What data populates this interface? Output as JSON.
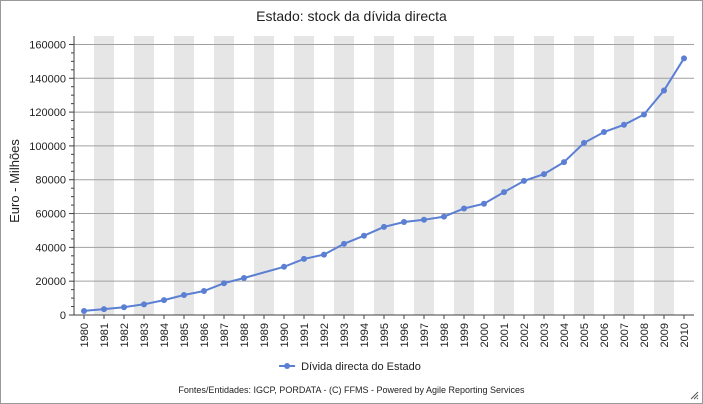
{
  "chart_data": {
    "type": "line",
    "title": "Estado: stock da dívida directa",
    "ylabel": "Euro - Milhões",
    "xlabel": "",
    "ylim": [
      0,
      165000
    ],
    "yticks": [
      0,
      20000,
      40000,
      60000,
      80000,
      100000,
      120000,
      140000,
      160000
    ],
    "categories": [
      "1980",
      "1981",
      "1982",
      "1983",
      "1984",
      "1985",
      "1986",
      "1987",
      "1988",
      "1989",
      "1990",
      "1991",
      "1992",
      "1993",
      "1994",
      "1995",
      "1996",
      "1997",
      "1998",
      "1999",
      "2000",
      "2001",
      "2002",
      "2003",
      "2004",
      "2005",
      "2006",
      "2007",
      "2008",
      "2009",
      "2010"
    ],
    "series": [
      {
        "name": "Dívida directa do Estado",
        "color": "#5b7fd3",
        "values": [
          2400,
          3500,
          4600,
          6300,
          8800,
          11800,
          14200,
          18800,
          21900,
          null,
          28500,
          33200,
          35700,
          42100,
          46900,
          52100,
          55000,
          56300,
          58200,
          63000,
          65800,
          72700,
          79300,
          83300,
          90400,
          101800,
          108200,
          112500,
          118600,
          132800,
          151800
        ]
      }
    ],
    "grid": true,
    "alternating_bands": true,
    "legend_position": "bottom"
  },
  "footer": "Fontes/Entidades: IGCP, PORDATA - (C) FFMS - Powered by Agile Reporting Services",
  "colors": {
    "band": "#e6e6e6",
    "gridline": "#a0a0a0",
    "axis": "#404040"
  }
}
